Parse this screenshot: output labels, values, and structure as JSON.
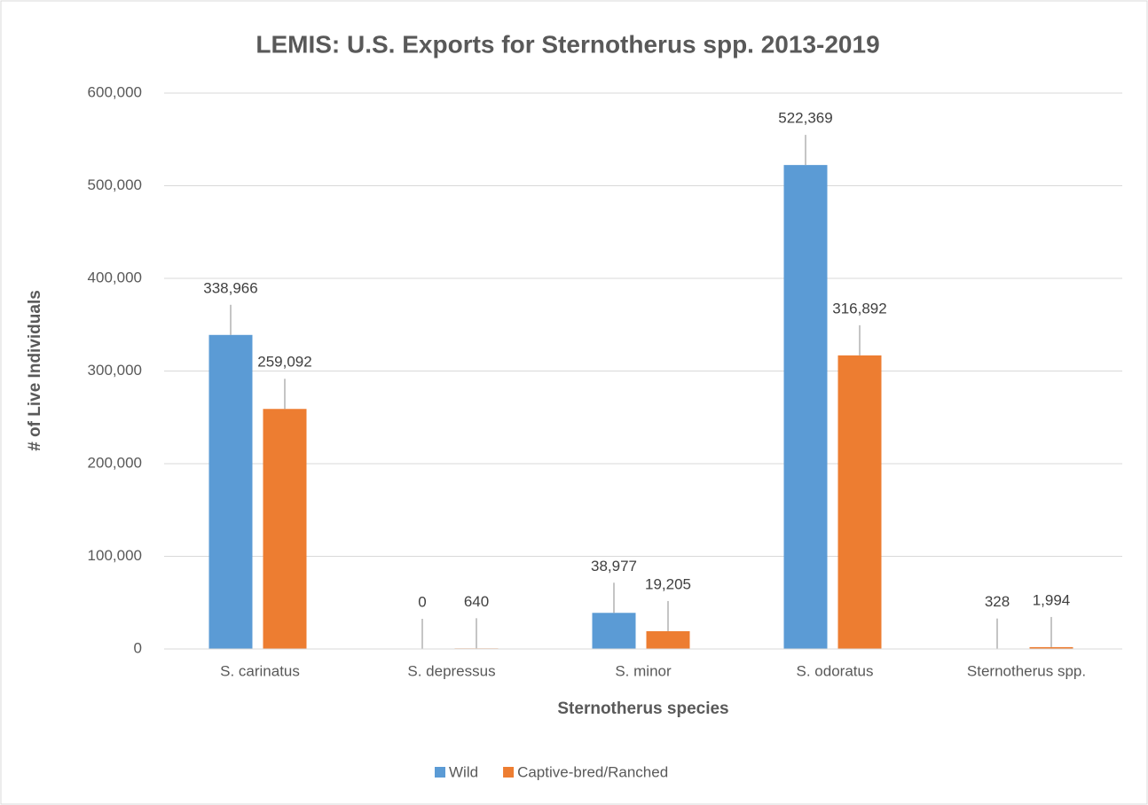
{
  "chart_data": {
    "type": "bar",
    "title": "LEMIS: U.S. Exports for Sternotherus spp. 2013-2019",
    "x_label": "Sternotherus species",
    "y_label": "# of Live Individuals",
    "categories": [
      "S. carinatus",
      "S. depressus",
      "S. minor",
      "S. odoratus",
      "Sternotherus spp."
    ],
    "series": [
      {
        "name": "Wild",
        "color": "#5b9bd5",
        "values": [
          338966,
          0,
          38977,
          522369,
          328
        ],
        "value_labels": [
          "338,966",
          "0",
          "38,977",
          "522,369",
          "328"
        ]
      },
      {
        "name": "Captive-bred/Ranched",
        "color": "#ed7d31",
        "values": [
          259092,
          640,
          19205,
          316892,
          1994
        ],
        "value_labels": [
          "259,092",
          "640",
          "19,205",
          "316,892",
          "1,994"
        ]
      }
    ],
    "ylim": [
      0,
      600000
    ],
    "yticks": [
      0,
      {
        "value": 100000,
        "label": "100,000"
      },
      {
        "value": 200000,
        "label": "200,000"
      },
      {
        "value": 300000,
        "label": "300,000"
      },
      {
        "value": 400000,
        "label": "400,000"
      },
      {
        "value": 500000,
        "label": "500,000"
      },
      {
        "value": 600000,
        "label": "600,000"
      }
    ],
    "grid": true,
    "legend": "bottom"
  }
}
